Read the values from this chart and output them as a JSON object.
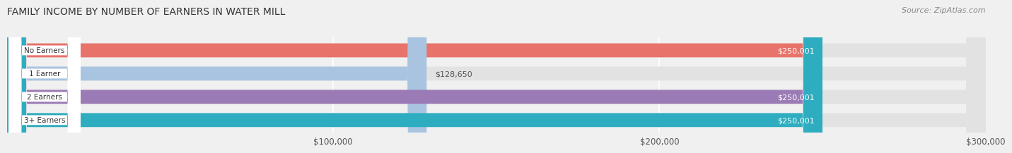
{
  "title": "FAMILY INCOME BY NUMBER OF EARNERS IN WATER MILL",
  "source": "Source: ZipAtlas.com",
  "categories": [
    "No Earners",
    "1 Earner",
    "2 Earners",
    "3+ Earners"
  ],
  "values": [
    250001,
    128650,
    250001,
    250001
  ],
  "bar_colors": [
    "#E8736A",
    "#A8C4E0",
    "#9B7BB5",
    "#2DADBF"
  ],
  "label_colors": [
    "white",
    "#555555",
    "white",
    "white"
  ],
  "xlim": [
    0,
    300000
  ],
  "xticks": [
    100000,
    200000,
    300000
  ],
  "xtick_labels": [
    "$100,000",
    "$200,000",
    "$300,000"
  ],
  "value_labels": [
    "$250,001",
    "$128,650",
    "$250,001",
    "$250,001"
  ],
  "background_color": "#f0f0f0",
  "bar_bg_color": "#e2e2e2",
  "title_fontsize": 10,
  "source_fontsize": 8
}
